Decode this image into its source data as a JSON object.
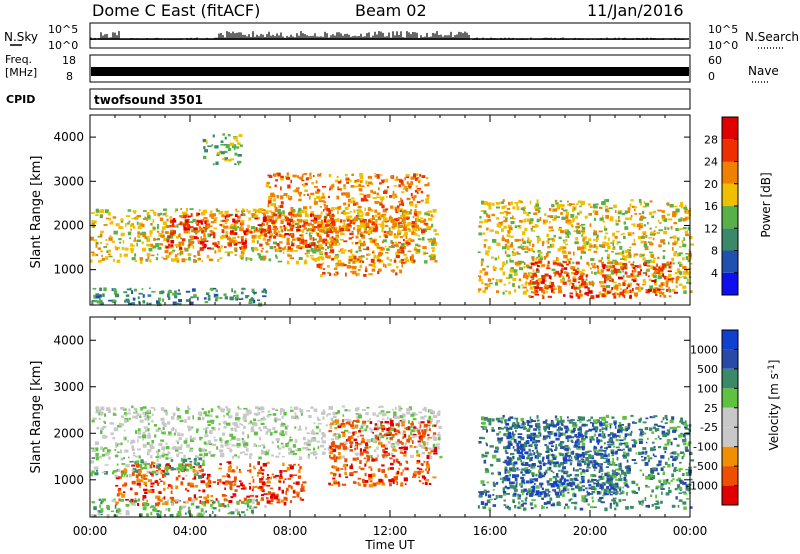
{
  "header": {
    "station": "Dome C East (fitACF)",
    "beam": "Beam 02",
    "date": "11/Jan/2016"
  },
  "top_panels": {
    "nsky": {
      "left_label": "N.Sky",
      "right_label": "N.Search",
      "tick_top": "10^5",
      "tick_bottom": "10^0",
      "right_tick_top": "10^5",
      "right_tick_bottom": "10^0"
    },
    "freq": {
      "left_label_1": "Freq.",
      "left_label_2": "[MHz]",
      "right_label": "Nave",
      "tick_top": "18",
      "tick_bottom": "8",
      "right_tick_top": "60",
      "right_tick_bottom": "0"
    },
    "cpid": {
      "left_label": "CPID",
      "program": "twofsound 3501"
    }
  },
  "colors": {
    "power_scale": [
      "#1010ee",
      "#2050b0",
      "#3a8a6a",
      "#58b048",
      "#f0c000",
      "#f08000",
      "#ee3000",
      "#e00000"
    ],
    "velocity_scale": [
      "#e00000",
      "#ee5000",
      "#f09000",
      "#c8c8c8",
      "#c8c8c8",
      "#60c040",
      "#3a8a6a",
      "#2a4aa8",
      "#1040d0"
    ]
  },
  "chart_data": [
    {
      "type": "heatmap",
      "name": "power",
      "xlabel": "Time UT",
      "ylabel": "Slant Range [km]",
      "xlim": [
        0,
        24
      ],
      "ylim": [
        200,
        4500
      ],
      "x_ticks": [
        "00:00",
        "04:00",
        "08:00",
        "12:00",
        "16:00",
        "20:00",
        "00:00"
      ],
      "y_ticks": [
        1000,
        2000,
        3000,
        4000
      ],
      "colorbar": {
        "label": "Power [dB]",
        "ticks": [
          4,
          8,
          12,
          16,
          20,
          24,
          28
        ],
        "range": [
          0,
          32
        ]
      },
      "regions": [
        {
          "x": [
            0.0,
            13.8
          ],
          "y": [
            1200,
            2400
          ],
          "level": 18
        },
        {
          "x": [
            3.0,
            9.5
          ],
          "y": [
            1500,
            2300
          ],
          "level": 24
        },
        {
          "x": [
            7.0,
            13.5
          ],
          "y": [
            1900,
            3200
          ],
          "level": 20
        },
        {
          "x": [
            9.0,
            13.0
          ],
          "y": [
            900,
            2200
          ],
          "level": 22
        },
        {
          "x": [
            15.5,
            24.0
          ],
          "y": [
            500,
            2600
          ],
          "level": 19
        },
        {
          "x": [
            17.5,
            23.5
          ],
          "y": [
            400,
            1200
          ],
          "level": 27
        },
        {
          "x": [
            0.0,
            7.0
          ],
          "y": [
            250,
            600
          ],
          "level": 11
        },
        {
          "x": [
            4.5,
            6.0
          ],
          "y": [
            3400,
            4100
          ],
          "level": 14
        }
      ]
    },
    {
      "type": "heatmap",
      "name": "velocity",
      "xlabel": "Time UT",
      "ylabel": "Slant Range [km]",
      "xlim": [
        0,
        24
      ],
      "ylim": [
        200,
        4500
      ],
      "x_ticks": [
        "00:00",
        "04:00",
        "08:00",
        "12:00",
        "16:00",
        "20:00",
        "00:00"
      ],
      "y_ticks": [
        1000,
        2000,
        3000,
        4000
      ],
      "colorbar": {
        "label": "Velocity [m s^-1]",
        "ticks": [
          "1000",
          "500",
          "100",
          "25",
          "-25",
          "-100",
          "-500",
          "-1000"
        ]
      },
      "regions": [
        {
          "x": [
            0.0,
            14.0
          ],
          "y": [
            1500,
            2600
          ],
          "value": 0
        },
        {
          "x": [
            1.0,
            8.5
          ],
          "y": [
            500,
            1400
          ],
          "value": -300
        },
        {
          "x": [
            9.5,
            13.8
          ],
          "y": [
            900,
            2300
          ],
          "value": -300
        },
        {
          "x": [
            0.0,
            4.5
          ],
          "y": [
            1100,
            1500
          ],
          "value": 80
        },
        {
          "x": [
            15.5,
            24.0
          ],
          "y": [
            400,
            2400
          ],
          "value": 200
        },
        {
          "x": [
            16.5,
            21.5
          ],
          "y": [
            700,
            2300
          ],
          "value": 700
        },
        {
          "x": [
            0.0,
            7.0
          ],
          "y": [
            250,
            600
          ],
          "value": 80
        }
      ]
    }
  ]
}
